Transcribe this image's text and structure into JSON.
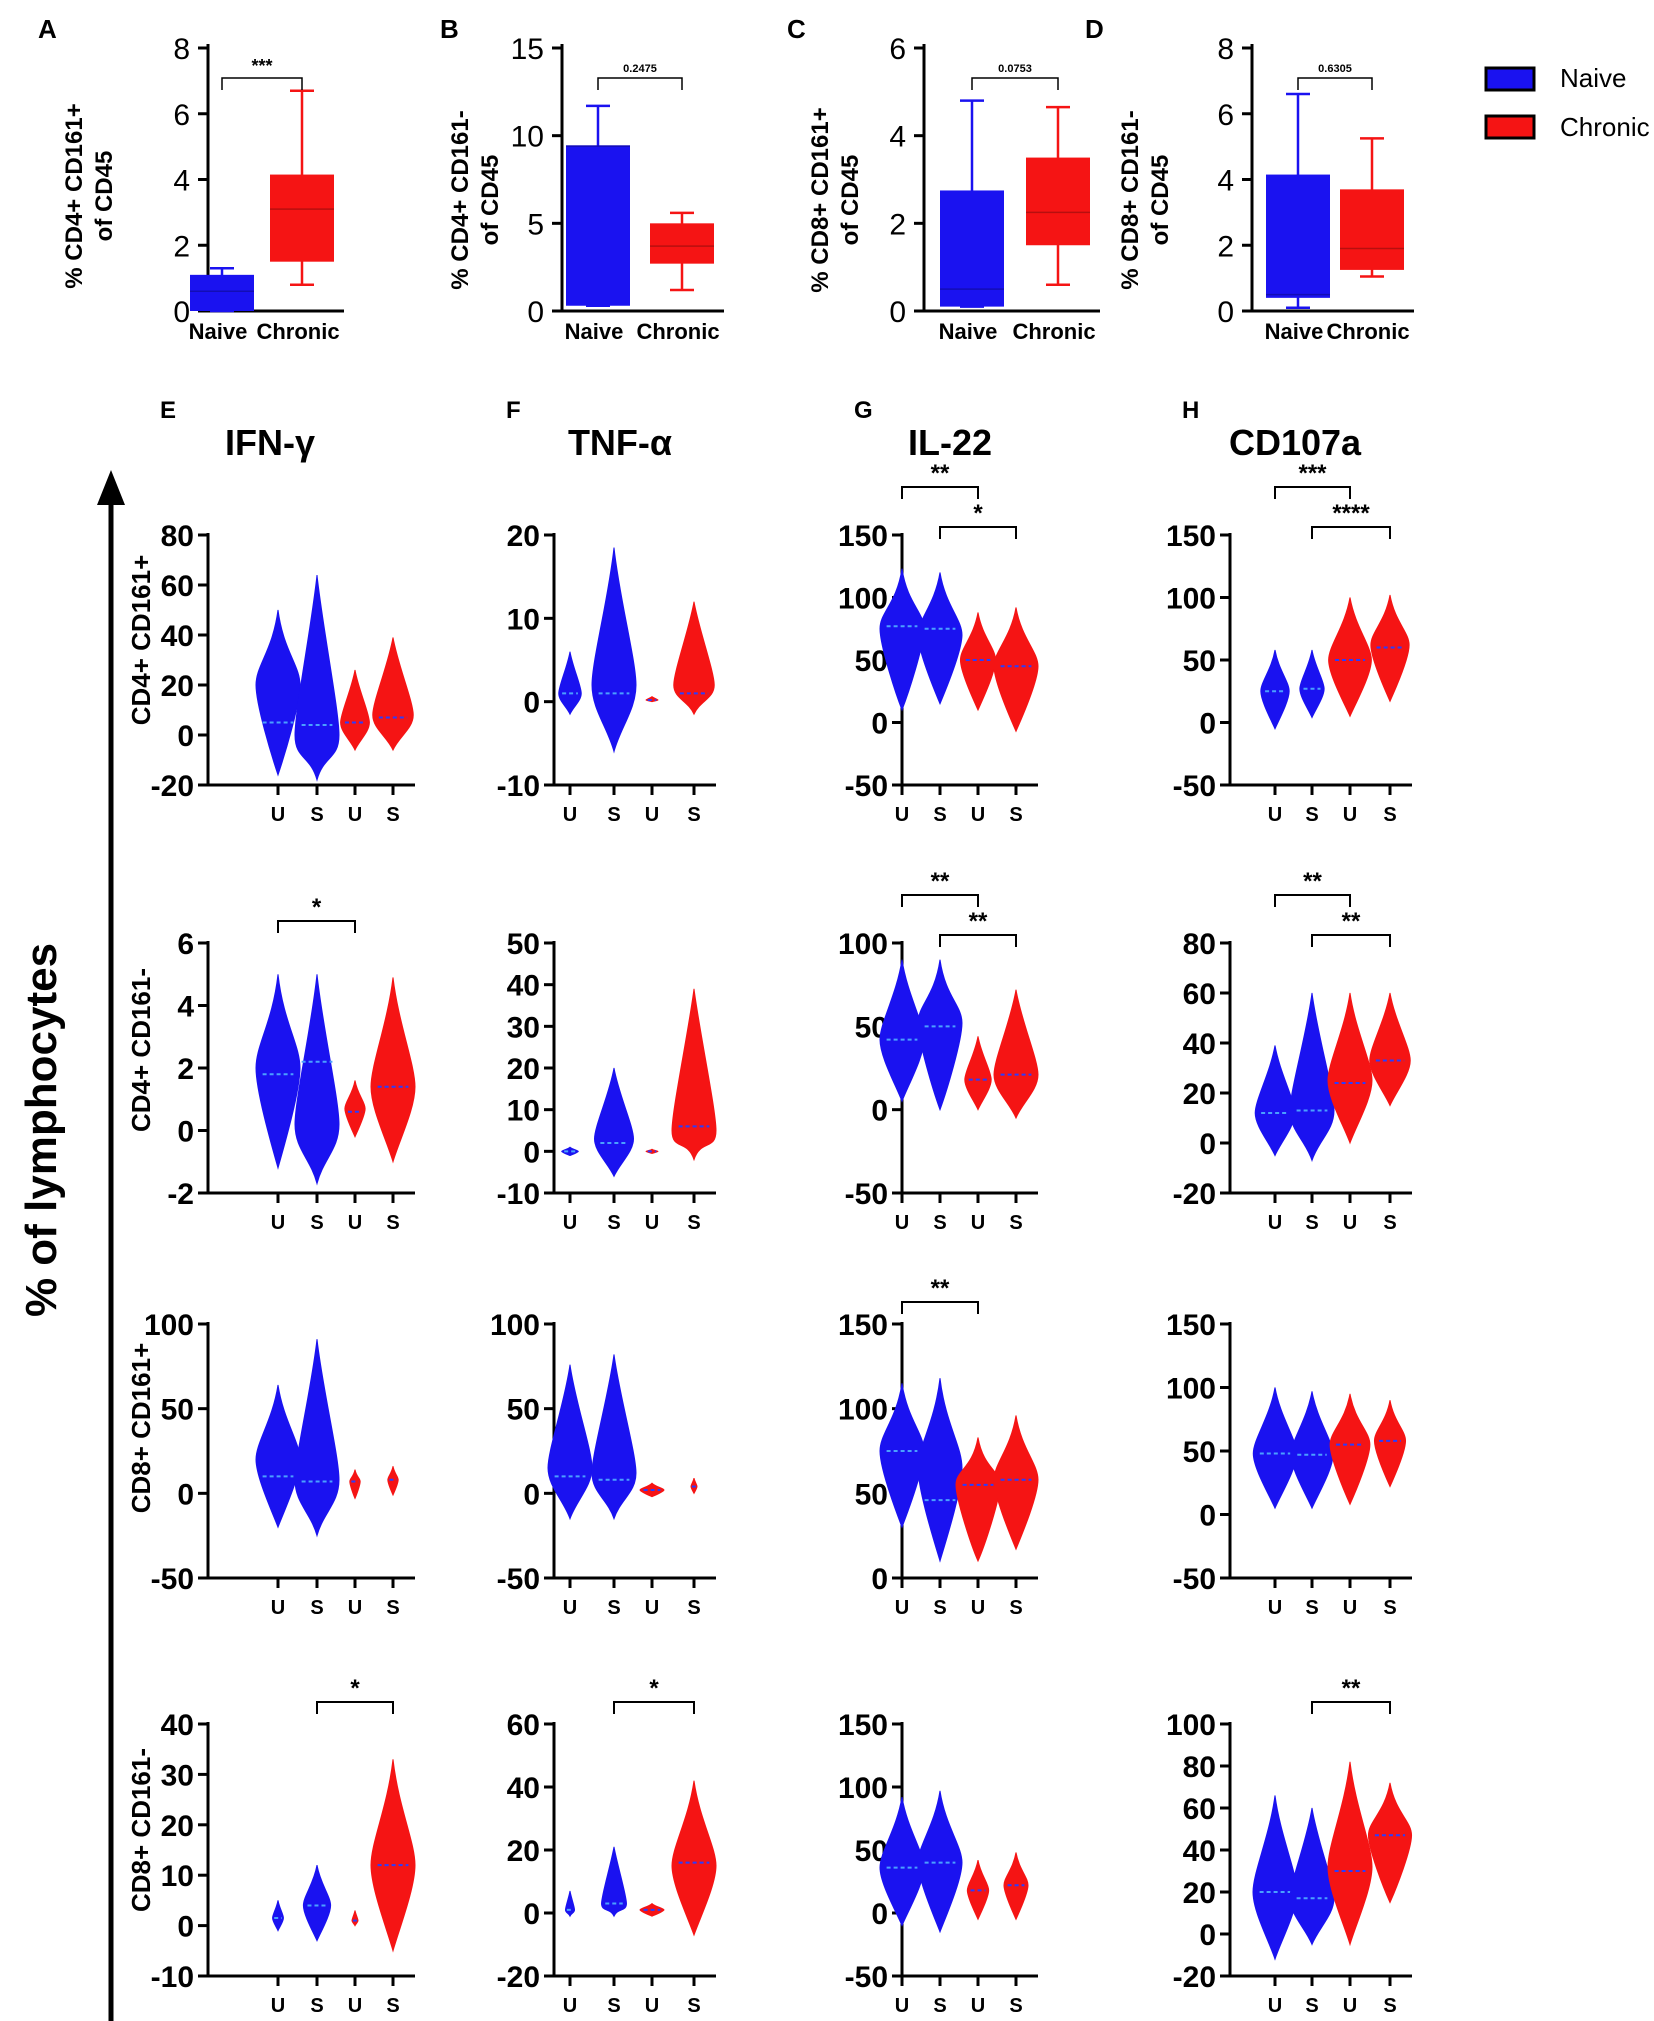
{
  "figure": {
    "y_axis_title": "% of lymphocytes",
    "legend": [
      {
        "label": "Naive",
        "color": "#1a12f0"
      },
      {
        "label": "Chronic",
        "color": "#f51414"
      }
    ],
    "colors": {
      "naive": "#1a12f0",
      "chronic": "#f51414",
      "naive_median": "#4aa0ff",
      "chronic_median": "#2a3cff"
    }
  },
  "chart_data": [
    {
      "type": "box",
      "panel": "A",
      "ylabel": "% CD4+ CD161+ of CD45",
      "categories": [
        "Naive",
        "Chronic"
      ],
      "ylim": [
        0,
        8
      ],
      "yticks": [
        0,
        2,
        4,
        6,
        8
      ],
      "boxes": [
        {
          "min": 0,
          "q1": 0,
          "median": 0.6,
          "q3": 1.1,
          "max": 1.3
        },
        {
          "min": 0.8,
          "q1": 1.5,
          "median": 3.1,
          "q3": 4.15,
          "max": 6.7
        }
      ],
      "significance": "***"
    },
    {
      "type": "box",
      "panel": "B",
      "ylabel": "% CD4+ CD161- of CD45",
      "categories": [
        "Naive",
        "Chronic"
      ],
      "ylim": [
        0,
        15
      ],
      "yticks": [
        0,
        5,
        10,
        15
      ],
      "boxes": [
        {
          "min": 0.3,
          "q1": 0.3,
          "median": 9.4,
          "q3": 9.45,
          "max": 11.7
        },
        {
          "min": 1.2,
          "q1": 2.7,
          "median": 3.7,
          "q3": 5,
          "max": 5.6
        }
      ],
      "significance": "0.2475"
    },
    {
      "type": "box",
      "panel": "C",
      "ylabel": "% CD8+ CD161+ of CD45",
      "categories": [
        "Naive",
        "Chronic"
      ],
      "ylim": [
        0,
        6
      ],
      "yticks": [
        0,
        2,
        4,
        6
      ],
      "boxes": [
        {
          "min": 0.1,
          "q1": 0.1,
          "median": 0.5,
          "q3": 2.75,
          "max": 4.8
        },
        {
          "min": 0.6,
          "q1": 1.5,
          "median": 2.25,
          "q3": 3.5,
          "max": 4.65
        }
      ],
      "significance": "0.0753"
    },
    {
      "type": "box",
      "panel": "D",
      "ylabel": "% CD8+ CD161- of CD45",
      "categories": [
        "Naive",
        "Chronic"
      ],
      "ylim": [
        0,
        8
      ],
      "yticks": [
        0,
        2,
        4,
        6,
        8
      ],
      "boxes": [
        {
          "min": 0.1,
          "q1": 0.4,
          "median": 0.5,
          "q3": 4.15,
          "max": 6.6
        },
        {
          "min": 1.05,
          "q1": 1.25,
          "median": 1.9,
          "q3": 3.7,
          "max": 5.25
        }
      ],
      "significance": "0.6305"
    },
    {
      "type": "violin",
      "panel": "E",
      "title": "IFN-γ",
      "row_label": "CD4+ CD161+",
      "categories": [
        "U",
        "S",
        "U",
        "S"
      ],
      "ylim": [
        -20,
        80
      ],
      "yticks": [
        -20,
        0,
        20,
        40,
        60,
        80
      ],
      "groups": [
        {
          "min": -16,
          "max": 50,
          "median": 5,
          "mass": 20
        },
        {
          "min": -18,
          "max": 64,
          "median": 4,
          "mass": 0
        },
        {
          "min": -6,
          "max": 26,
          "median": 5,
          "mass": 5
        },
        {
          "min": -6,
          "max": 39,
          "median": 7,
          "mass": 8
        }
      ],
      "brackets": []
    },
    {
      "type": "violin",
      "panel": "F",
      "title": "TNF-α",
      "row_label": "CD4+ CD161+",
      "categories": [
        "U",
        "S",
        "U",
        "S"
      ],
      "ylim": [
        -10,
        20
      ],
      "yticks": [
        -10,
        0,
        10,
        20
      ],
      "groups": [
        {
          "min": -1.5,
          "max": 6,
          "median": 1,
          "mass": 1
        },
        {
          "min": -6,
          "max": 18.5,
          "median": 1,
          "mass": 2
        },
        {
          "min": 0,
          "max": 0.6,
          "median": 0.2,
          "mass": 0.2
        },
        {
          "min": -1.5,
          "max": 12,
          "median": 1,
          "mass": 2
        }
      ],
      "brackets": []
    },
    {
      "type": "violin",
      "panel": "G",
      "title": "IL-22",
      "row_label": "CD4+ CD161+",
      "categories": [
        "U",
        "S",
        "U",
        "S"
      ],
      "ylim": [
        -50,
        150
      ],
      "yticks": [
        -50,
        0,
        50,
        100,
        150
      ],
      "groups": [
        {
          "min": 10,
          "max": 123,
          "median": 77,
          "mass": 75
        },
        {
          "min": 15,
          "max": 120,
          "median": 75,
          "mass": 70
        },
        {
          "min": 10,
          "max": 88,
          "median": 50,
          "mass": 50
        },
        {
          "min": -7,
          "max": 92,
          "median": 45,
          "mass": 45
        }
      ],
      "brackets": [
        {
          "from": 0,
          "to": 2,
          "label": "**"
        },
        {
          "from": 1,
          "to": 3,
          "label": "*"
        }
      ]
    },
    {
      "type": "violin",
      "panel": "H",
      "title": "CD107a",
      "row_label": "CD4+ CD161+",
      "categories": [
        "U",
        "S",
        "U",
        "S"
      ],
      "ylim": [
        -50,
        150
      ],
      "yticks": [
        -50,
        0,
        50,
        100,
        150
      ],
      "groups": [
        {
          "min": -5,
          "max": 58,
          "median": 25,
          "mass": 25
        },
        {
          "min": 4,
          "max": 58,
          "median": 27,
          "mass": 27
        },
        {
          "min": 5,
          "max": 100,
          "median": 50,
          "mass": 50
        },
        {
          "min": 17,
          "max": 102,
          "median": 60,
          "mass": 62
        }
      ],
      "brackets": [
        {
          "from": 0,
          "to": 2,
          "label": "***"
        },
        {
          "from": 1,
          "to": 3,
          "label": "****"
        }
      ]
    },
    {
      "type": "violin",
      "panel": "E2",
      "row_label": "CD4+ CD161-",
      "categories": [
        "U",
        "S",
        "U",
        "S"
      ],
      "ylim": [
        -2,
        6
      ],
      "yticks": [
        -2,
        0,
        2,
        4,
        6
      ],
      "groups": [
        {
          "min": -1.2,
          "max": 5,
          "median": 1.8,
          "mass": 2
        },
        {
          "min": -1.7,
          "max": 5,
          "median": 2.2,
          "mass": 0.2
        },
        {
          "min": -0.2,
          "max": 1.6,
          "median": 0.6,
          "mass": 0.7
        },
        {
          "min": -1,
          "max": 4.9,
          "median": 1.4,
          "mass": 1.4
        }
      ],
      "brackets": [
        {
          "from": 0,
          "to": 2,
          "label": "*"
        }
      ]
    },
    {
      "type": "violin",
      "panel": "F2",
      "row_label": "CD4+ CD161-",
      "categories": [
        "U",
        "S",
        "U",
        "S"
      ],
      "ylim": [
        -10,
        50
      ],
      "yticks": [
        -10,
        0,
        10,
        20,
        30,
        40,
        50
      ],
      "groups": [
        {
          "min": -1,
          "max": 1,
          "median": 0,
          "mass": 0
        },
        {
          "min": -6,
          "max": 20,
          "median": 2,
          "mass": 3
        },
        {
          "min": -0.5,
          "max": 0.5,
          "median": 0,
          "mass": 0
        },
        {
          "min": -2,
          "max": 39,
          "median": 6,
          "mass": 5
        }
      ],
      "brackets": []
    },
    {
      "type": "violin",
      "panel": "G2",
      "row_label": "CD4+ CD161-",
      "categories": [
        "U",
        "S",
        "U",
        "S"
      ],
      "ylim": [
        -50,
        100
      ],
      "yticks": [
        -50,
        0,
        50,
        100
      ],
      "groups": [
        {
          "min": 5,
          "max": 90,
          "median": 42,
          "mass": 42
        },
        {
          "min": 0,
          "max": 90,
          "median": 50,
          "mass": 52
        },
        {
          "min": 0,
          "max": 44,
          "median": 18,
          "mass": 18
        },
        {
          "min": -5,
          "max": 72,
          "median": 21,
          "mass": 21
        }
      ],
      "brackets": [
        {
          "from": 0,
          "to": 2,
          "label": "**"
        },
        {
          "from": 1,
          "to": 3,
          "label": "**"
        }
      ]
    },
    {
      "type": "violin",
      "panel": "H2",
      "row_label": "CD4+ CD161-",
      "categories": [
        "U",
        "S",
        "U",
        "S"
      ],
      "ylim": [
        -20,
        80
      ],
      "yticks": [
        -20,
        0,
        20,
        40,
        60,
        80
      ],
      "groups": [
        {
          "min": -5,
          "max": 39,
          "median": 12,
          "mass": 12
        },
        {
          "min": -7,
          "max": 60,
          "median": 13,
          "mass": 13
        },
        {
          "min": 0,
          "max": 60,
          "median": 24,
          "mass": 25
        },
        {
          "min": 15,
          "max": 60,
          "median": 33,
          "mass": 33
        }
      ],
      "brackets": [
        {
          "from": 0,
          "to": 2,
          "label": "**"
        },
        {
          "from": 1,
          "to": 3,
          "label": "**"
        }
      ]
    },
    {
      "type": "violin",
      "panel": "E3",
      "row_label": "CD8+ CD161+",
      "categories": [
        "U",
        "S",
        "U",
        "S"
      ],
      "ylim": [
        -50,
        100
      ],
      "yticks": [
        -50,
        0,
        50,
        100
      ],
      "groups": [
        {
          "min": -20,
          "max": 64,
          "median": 10,
          "mass": 20
        },
        {
          "min": -25,
          "max": 91,
          "median": 7,
          "mass": 8
        },
        {
          "min": -3,
          "max": 14,
          "median": 7,
          "mass": 7
        },
        {
          "min": -1,
          "max": 16,
          "median": 8,
          "mass": 8
        }
      ],
      "brackets": []
    },
    {
      "type": "violin",
      "panel": "F3",
      "row_label": "CD8+ CD161+",
      "categories": [
        "U",
        "S",
        "U",
        "S"
      ],
      "ylim": [
        -50,
        100
      ],
      "yticks": [
        -50,
        0,
        50,
        100
      ],
      "groups": [
        {
          "min": -15,
          "max": 76,
          "median": 10,
          "mass": 15
        },
        {
          "min": -15,
          "max": 82,
          "median": 8,
          "mass": 12
        },
        {
          "min": -2,
          "max": 6,
          "median": 2,
          "mass": 2
        },
        {
          "min": 0,
          "max": 9,
          "median": 4,
          "mass": 4
        }
      ],
      "brackets": []
    },
    {
      "type": "violin",
      "panel": "G3",
      "row_label": "CD8+ CD161+",
      "categories": [
        "U",
        "S",
        "U",
        "S"
      ],
      "ylim": [
        0,
        150
      ],
      "yticks": [
        0,
        50,
        100,
        150
      ],
      "groups": [
        {
          "min": 30,
          "max": 115,
          "median": 75,
          "mass": 75
        },
        {
          "min": 10,
          "max": 118,
          "median": 46,
          "mass": 65
        },
        {
          "min": 10,
          "max": 83,
          "median": 55,
          "mass": 55
        },
        {
          "min": 17,
          "max": 96,
          "median": 58,
          "mass": 58
        }
      ],
      "brackets": [
        {
          "from": 0,
          "to": 2,
          "label": "**"
        }
      ]
    },
    {
      "type": "violin",
      "panel": "H3",
      "row_label": "CD8+ CD161+",
      "categories": [
        "U",
        "S",
        "U",
        "S"
      ],
      "ylim": [
        -50,
        150
      ],
      "yticks": [
        -50,
        0,
        50,
        100,
        150
      ],
      "groups": [
        {
          "min": 5,
          "max": 100,
          "median": 48,
          "mass": 48
        },
        {
          "min": 5,
          "max": 97,
          "median": 47,
          "mass": 47
        },
        {
          "min": 8,
          "max": 95,
          "median": 55,
          "mass": 55
        },
        {
          "min": 22,
          "max": 90,
          "median": 58,
          "mass": 58
        }
      ],
      "brackets": []
    },
    {
      "type": "violin",
      "panel": "E4",
      "row_label": "CD8+ CD161-",
      "categories": [
        "U",
        "S",
        "U",
        "S"
      ],
      "ylim": [
        -10,
        40
      ],
      "yticks": [
        -10,
        0,
        10,
        20,
        30,
        40
      ],
      "groups": [
        {
          "min": -1,
          "max": 5,
          "median": 1.5,
          "mass": 1.5
        },
        {
          "min": -3,
          "max": 12,
          "median": 4,
          "mass": 4
        },
        {
          "min": 0,
          "max": 3,
          "median": 1,
          "mass": 1
        },
        {
          "min": -5,
          "max": 33,
          "median": 12,
          "mass": 12
        }
      ],
      "brackets": [
        {
          "from": 1,
          "to": 3,
          "label": "*"
        }
      ]
    },
    {
      "type": "violin",
      "panel": "F4",
      "row_label": "CD8+ CD161-",
      "categories": [
        "U",
        "S",
        "U",
        "S"
      ],
      "ylim": [
        -20,
        60
      ],
      "yticks": [
        -20,
        0,
        20,
        40,
        60
      ],
      "groups": [
        {
          "min": -1,
          "max": 7,
          "median": 1,
          "mass": 1
        },
        {
          "min": -1,
          "max": 21,
          "median": 3,
          "mass": 3
        },
        {
          "min": -1,
          "max": 3,
          "median": 1,
          "mass": 1
        },
        {
          "min": -7,
          "max": 42,
          "median": 16,
          "mass": 15
        }
      ],
      "brackets": [
        {
          "from": 1,
          "to": 3,
          "label": "*"
        }
      ]
    },
    {
      "type": "violin",
      "panel": "G4",
      "row_label": "CD8+ CD161-",
      "categories": [
        "U",
        "S",
        "U",
        "S"
      ],
      "ylim": [
        -50,
        150
      ],
      "yticks": [
        -50,
        0,
        50,
        100,
        150
      ],
      "groups": [
        {
          "min": -10,
          "max": 92,
          "median": 36,
          "mass": 36
        },
        {
          "min": -15,
          "max": 97,
          "median": 40,
          "mass": 40
        },
        {
          "min": -5,
          "max": 42,
          "median": 18,
          "mass": 18
        },
        {
          "min": -5,
          "max": 48,
          "median": 22,
          "mass": 22
        }
      ],
      "brackets": []
    },
    {
      "type": "violin",
      "panel": "H4",
      "row_label": "CD8+ CD161-",
      "categories": [
        "U",
        "S",
        "U",
        "S"
      ],
      "ylim": [
        -20,
        100
      ],
      "yticks": [
        -20,
        0,
        20,
        40,
        60,
        80,
        100
      ],
      "groups": [
        {
          "min": -12,
          "max": 66,
          "median": 20,
          "mass": 20
        },
        {
          "min": -5,
          "max": 60,
          "median": 17,
          "mass": 17
        },
        {
          "min": -5,
          "max": 82,
          "median": 30,
          "mass": 32
        },
        {
          "min": 15,
          "max": 72,
          "median": 47,
          "mass": 47
        }
      ],
      "brackets": [
        {
          "from": 1,
          "to": 3,
          "label": "**"
        }
      ]
    }
  ]
}
